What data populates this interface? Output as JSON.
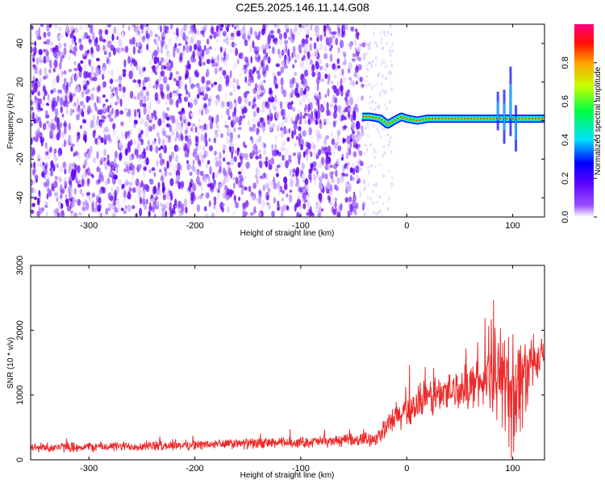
{
  "title": "C2E5.2025.146.11.14.G08",
  "colors": {
    "snr_line": "#ee2a2a",
    "noise_purple": "#6a0ae6",
    "signal_band": "#00c8ff"
  },
  "colormap": [
    "#ffffff",
    "#8000ff",
    "#0000ff",
    "#00ffff",
    "#00ff00",
    "#ffff00",
    "#ff8000",
    "#ff0000",
    "#ff0080"
  ],
  "chart_data": [
    {
      "type": "heatmap",
      "xlabel": "Height of straight line (km)",
      "ylabel": "Frequency (Hz)",
      "xlim": [
        -355,
        130
      ],
      "ylim": [
        -50,
        50
      ],
      "x_ticks": [
        -300,
        -200,
        -100,
        0,
        100
      ],
      "x_tick_labels": [
        "-300",
        "-200",
        "-100",
        "0",
        "100"
      ],
      "y_ticks": [
        -40,
        -20,
        0,
        20,
        40
      ],
      "y_tick_labels": [
        "-40",
        "-20",
        "0",
        "20",
        "40"
      ],
      "noise_region_x": [
        -355,
        -40
      ],
      "signal_region_x": [
        -42,
        130
      ],
      "signal_frequency_hz": [
        [
          -42,
          2
        ],
        [
          -35,
          2
        ],
        [
          -25,
          1
        ],
        [
          -18,
          -2
        ],
        [
          -12,
          0
        ],
        [
          -5,
          2
        ],
        [
          0,
          1
        ],
        [
          10,
          0
        ],
        [
          20,
          1
        ],
        [
          40,
          1
        ],
        [
          60,
          1
        ],
        [
          80,
          1
        ],
        [
          90,
          1
        ],
        [
          100,
          1
        ],
        [
          110,
          1
        ],
        [
          130,
          1
        ]
      ],
      "colorbar": {
        "label": "Normalized spectral amplitude",
        "range": [
          0,
          1
        ],
        "ticks": [
          0.0,
          0.2,
          0.4,
          0.6,
          0.8
        ],
        "tick_labels": [
          "0.0",
          "0.2",
          "0.4",
          "0.6",
          "0.8"
        ]
      }
    },
    {
      "type": "line",
      "xlabel": "Height of straight line (km)",
      "ylabel": "SNR (10 * v/v)",
      "xlim": [
        -355,
        130
      ],
      "ylim": [
        0,
        3000
      ],
      "x_ticks": [
        -300,
        -200,
        -100,
        0,
        100
      ],
      "x_tick_labels": [
        "-300",
        "-200",
        "-100",
        "0",
        "100"
      ],
      "y_ticks": [
        0,
        1000,
        2000,
        3000
      ],
      "y_tick_labels": [
        "0",
        "1000",
        "2000",
        "3000"
      ],
      "series": [
        {
          "x": [
            -355,
            -300,
            -250,
            -200,
            -150,
            -100,
            -50,
            -30,
            -20,
            -10,
            0,
            10,
            20,
            30,
            40,
            50,
            60,
            70,
            80,
            90,
            100,
            110,
            120,
            130
          ],
          "mean": [
            190,
            200,
            210,
            230,
            250,
            270,
            300,
            330,
            480,
            650,
            750,
            850,
            950,
            1000,
            1050,
            1100,
            1150,
            1200,
            1250,
            1300,
            1000,
            1300,
            1450,
            1550
          ],
          "spread": [
            90,
            90,
            90,
            90,
            100,
            100,
            110,
            130,
            200,
            300,
            320,
            340,
            360,
            380,
            380,
            380,
            400,
            450,
            600,
            900,
            1200,
            900,
            350,
            300
          ]
        }
      ]
    }
  ]
}
